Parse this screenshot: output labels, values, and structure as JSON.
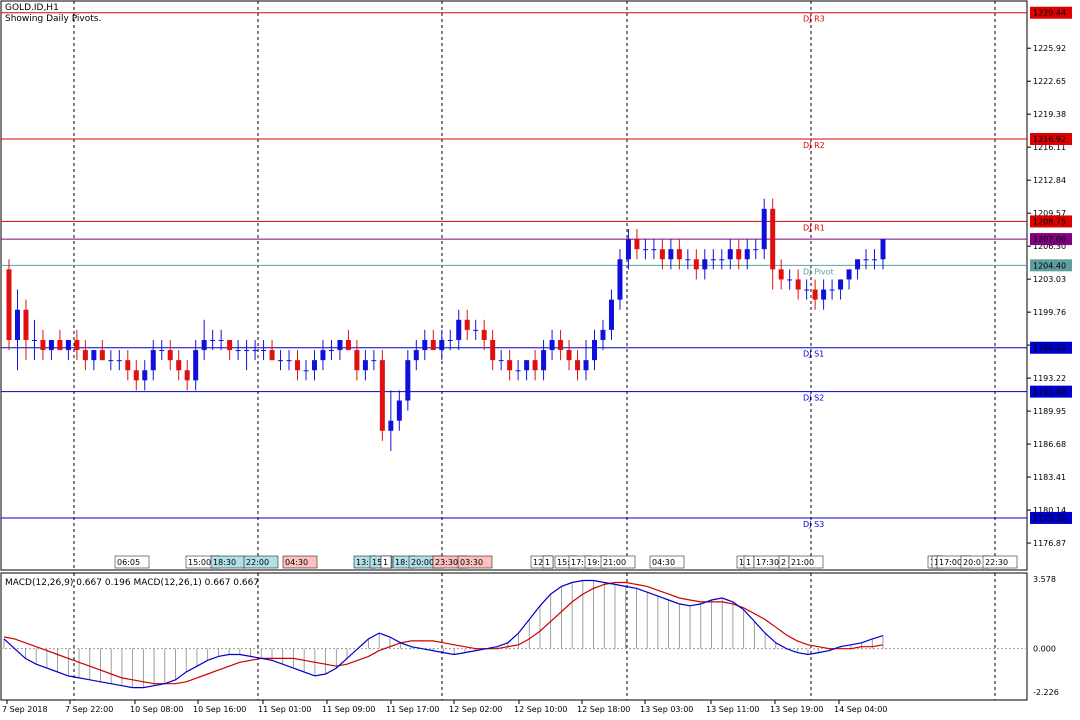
{
  "header": {
    "symbol": "GOLD.ID,H1",
    "subtitle": "Showing Daily Pivots."
  },
  "macd_label": "MACD(12,26,9) 0.667 0.196 MACD(12,26,1) 0.667 0.667",
  "colors": {
    "bull": "#1010dd",
    "bear": "#e01010",
    "resistance": "#dd0000",
    "support": "#0000cc",
    "pivot": "#5f9ea0",
    "price": "#800080",
    "macd_main": "#0000cc",
    "macd_signal": "#cc0000"
  },
  "chart_data": [
    {
      "type": "candlestick",
      "title": "GOLD.ID,H1",
      "ylim": [
        1174.2,
        1230.6
      ],
      "y_ticks": [
        "1225.92",
        "1222.65",
        "1219.38",
        "1216.11",
        "1212.84",
        "1209.57",
        "1206.30",
        "1203.03",
        "1199.76",
        "1196.49",
        "1193.22",
        "1189.95",
        "1186.68",
        "1183.41",
        "1180.14",
        "1176.87"
      ],
      "price_tags": [
        {
          "label": "1229.44",
          "value": 1229.44,
          "kind": "resistance"
        },
        {
          "label": "1216.92",
          "value": 1216.92,
          "kind": "resistance"
        },
        {
          "label": "1208.75",
          "value": 1208.75,
          "kind": "resistance"
        },
        {
          "label": "1207.00",
          "value": 1207.0,
          "kind": "price"
        },
        {
          "label": "1204.40",
          "value": 1204.4,
          "kind": "pivot"
        },
        {
          "label": "1196.23",
          "value": 1196.23,
          "kind": "support"
        },
        {
          "label": "1191.88",
          "value": 1191.88,
          "kind": "support"
        },
        {
          "label": "1179.36",
          "value": 1179.36,
          "kind": "support"
        }
      ],
      "pivot_levels": [
        {
          "name": "DJ R3",
          "value": 1229.44,
          "kind": "resistance"
        },
        {
          "name": "DJ R2",
          "value": 1216.92,
          "kind": "resistance"
        },
        {
          "name": "DJ R1",
          "value": 1208.75,
          "kind": "resistance"
        },
        {
          "name": "DJ Pivot",
          "value": 1204.4,
          "kind": "pivot"
        },
        {
          "name": "DJ S1",
          "value": 1196.23,
          "kind": "support"
        },
        {
          "name": "DJ S2",
          "value": 1191.88,
          "kind": "support"
        },
        {
          "name": "DJ S3",
          "value": 1179.36,
          "kind": "support"
        }
      ],
      "session_labels": [
        {
          "text": "06:05",
          "bg": "#ffffff"
        },
        {
          "text": "15:00",
          "bg": "#ffffff"
        },
        {
          "text": "18:30",
          "bg": "#b0e0e6"
        },
        {
          "text": "22:00",
          "bg": "#b0e0e6"
        },
        {
          "text": "04:30",
          "bg": "#ffc0c0"
        },
        {
          "text": "13:",
          "bg": "#b0e0e6"
        },
        {
          "text": "15:",
          "bg": "#b0e0e6"
        },
        {
          "text": "1",
          "bg": "#ffffff"
        },
        {
          "text": "18:",
          "bg": "#b0e0e6"
        },
        {
          "text": "20:00",
          "bg": "#b0e0e6"
        },
        {
          "text": "23:30",
          "bg": "#ffc0c0"
        },
        {
          "text": "03:30",
          "bg": "#ffc0c0"
        },
        {
          "text": "12:",
          "bg": "#ffffff"
        },
        {
          "text": "1",
          "bg": "#ffffff"
        },
        {
          "text": "15:",
          "bg": "#ffffff"
        },
        {
          "text": "17:",
          "bg": "#ffffff"
        },
        {
          "text": "19:",
          "bg": "#ffffff"
        },
        {
          "text": "21:00",
          "bg": "#ffffff"
        },
        {
          "text": "04:30",
          "bg": "#ffffff"
        },
        {
          "text": "1",
          "bg": "#ffffff"
        },
        {
          "text": "1",
          "bg": "#ffffff"
        },
        {
          "text": "17:30",
          "bg": "#ffffff"
        },
        {
          "text": "2",
          "bg": "#ffffff"
        },
        {
          "text": "21:00",
          "bg": "#ffffff"
        },
        {
          "text": "1",
          "bg": "#ffffff"
        },
        {
          "text": "1",
          "bg": "#ffffff"
        },
        {
          "text": "17:00",
          "bg": "#ffffff"
        },
        {
          "text": "20:0",
          "bg": "#ffffff"
        },
        {
          "text": "22:30",
          "bg": "#ffffff"
        }
      ],
      "x_labels": [
        "7 Sep 2018",
        "7 Sep 22:00",
        "10 Sep 08:00",
        "10 Sep 16:00",
        "11 Sep 01:00",
        "11 Sep 09:00",
        "11 Sep 17:00",
        "12 Sep 02:00",
        "12 Sep 10:00",
        "12 Sep 18:00",
        "13 Sep 03:00",
        "13 Sep 11:00",
        "13 Sep 19:00",
        "14 Sep 04:00"
      ],
      "candles": [
        [
          1204,
          1205,
          1196,
          1197
        ],
        [
          1197,
          1202,
          1194,
          1200
        ],
        [
          1200,
          1201,
          1195,
          1197
        ],
        [
          1197,
          1199,
          1195,
          1197
        ],
        [
          1197,
          1198,
          1195,
          1196
        ],
        [
          1196,
          1197,
          1195,
          1197
        ],
        [
          1197,
          1198,
          1196,
          1196
        ],
        [
          1196,
          1197,
          1195,
          1197
        ],
        [
          1197,
          1198,
          1195,
          1196
        ],
        [
          1196,
          1197,
          1194,
          1195
        ],
        [
          1195,
          1196,
          1194,
          1196
        ],
        [
          1196,
          1197,
          1195,
          1195
        ],
        [
          1195,
          1196,
          1194,
          1195
        ],
        [
          1195,
          1196,
          1194,
          1195
        ],
        [
          1195,
          1196,
          1193,
          1194
        ],
        [
          1194,
          1195,
          1192,
          1193
        ],
        [
          1193,
          1195,
          1192,
          1194
        ],
        [
          1194,
          1197,
          1193,
          1196
        ],
        [
          1196,
          1197,
          1195,
          1196
        ],
        [
          1196,
          1197,
          1194,
          1195
        ],
        [
          1195,
          1196,
          1193,
          1194
        ],
        [
          1194,
          1195,
          1192,
          1193
        ],
        [
          1193,
          1197,
          1192,
          1196
        ],
        [
          1196,
          1199,
          1195,
          1197
        ],
        [
          1197,
          1198,
          1196,
          1197
        ],
        [
          1197,
          1198,
          1196,
          1197
        ],
        [
          1197,
          1197,
          1195,
          1196
        ],
        [
          1196,
          1197,
          1195,
          1196
        ],
        [
          1196,
          1197,
          1194,
          1196
        ],
        [
          1196,
          1197,
          1195,
          1196
        ],
        [
          1196,
          1197,
          1195,
          1196
        ],
        [
          1196,
          1197,
          1195,
          1195
        ],
        [
          1195,
          1196,
          1194,
          1195
        ],
        [
          1195,
          1196,
          1194,
          1195
        ],
        [
          1195,
          1196,
          1193,
          1194
        ],
        [
          1194,
          1195,
          1193,
          1194
        ],
        [
          1194,
          1196,
          1193,
          1195
        ],
        [
          1195,
          1197,
          1194,
          1196
        ],
        [
          1196,
          1197,
          1195,
          1196
        ],
        [
          1196,
          1197,
          1195,
          1197
        ],
        [
          1197,
          1198,
          1196,
          1196
        ],
        [
          1196,
          1197,
          1193,
          1194
        ],
        [
          1194,
          1196,
          1193,
          1195
        ],
        [
          1195,
          1196,
          1194,
          1195
        ],
        [
          1195,
          1196,
          1187,
          1188
        ],
        [
          1188,
          1192,
          1186,
          1189
        ],
        [
          1189,
          1192,
          1188,
          1191
        ],
        [
          1191,
          1196,
          1190,
          1195
        ],
        [
          1195,
          1197,
          1194,
          1196
        ],
        [
          1196,
          1198,
          1195,
          1197
        ],
        [
          1197,
          1198,
          1196,
          1196
        ],
        [
          1196,
          1198,
          1195,
          1197
        ],
        [
          1197,
          1198,
          1196,
          1197
        ],
        [
          1197,
          1200,
          1196,
          1199
        ],
        [
          1199,
          1200,
          1197,
          1198
        ],
        [
          1198,
          1199,
          1197,
          1198
        ],
        [
          1198,
          1199,
          1196,
          1197
        ],
        [
          1197,
          1198,
          1194,
          1195
        ],
        [
          1195,
          1196,
          1194,
          1195
        ],
        [
          1195,
          1196,
          1193,
          1194
        ],
        [
          1194,
          1195,
          1193,
          1194
        ],
        [
          1194,
          1195,
          1193,
          1195
        ],
        [
          1195,
          1196,
          1193,
          1194
        ],
        [
          1194,
          1197,
          1193,
          1196
        ],
        [
          1196,
          1198,
          1195,
          1197
        ],
        [
          1197,
          1198,
          1195,
          1196
        ],
        [
          1196,
          1197,
          1194,
          1195
        ],
        [
          1195,
          1196,
          1193,
          1194
        ],
        [
          1194,
          1197,
          1193,
          1195
        ],
        [
          1195,
          1198,
          1194,
          1197
        ],
        [
          1197,
          1199,
          1196,
          1198
        ],
        [
          1198,
          1202,
          1197,
          1201
        ],
        [
          1201,
          1206,
          1200,
          1205
        ],
        [
          1205,
          1208,
          1204,
          1207
        ],
        [
          1207,
          1208,
          1205,
          1206
        ],
        [
          1206,
          1207,
          1205,
          1206
        ],
        [
          1206,
          1207,
          1205,
          1206
        ],
        [
          1206,
          1207,
          1204,
          1205
        ],
        [
          1205,
          1207,
          1204,
          1206
        ],
        [
          1206,
          1207,
          1204,
          1205
        ],
        [
          1205,
          1206,
          1204,
          1205
        ],
        [
          1205,
          1206,
          1203,
          1204
        ],
        [
          1204,
          1206,
          1203,
          1205
        ],
        [
          1205,
          1206,
          1204,
          1205
        ],
        [
          1205,
          1206,
          1204,
          1205
        ],
        [
          1205,
          1207,
          1204,
          1206
        ],
        [
          1206,
          1207,
          1204,
          1205
        ],
        [
          1205,
          1207,
          1204,
          1206
        ],
        [
          1206,
          1207,
          1205,
          1206
        ],
        [
          1206,
          1211,
          1205,
          1210
        ],
        [
          1210,
          1211,
          1202,
          1204
        ],
        [
          1204,
          1205,
          1202,
          1203
        ],
        [
          1203,
          1204,
          1202,
          1203
        ],
        [
          1203,
          1204,
          1201,
          1202
        ],
        [
          1202,
          1203,
          1201,
          1202
        ],
        [
          1202,
          1203,
          1200,
          1201
        ],
        [
          1201,
          1203,
          1200,
          1202
        ],
        [
          1202,
          1203,
          1201,
          1202
        ],
        [
          1202,
          1203,
          1201,
          1203
        ],
        [
          1203,
          1204,
          1202,
          1204
        ],
        [
          1204,
          1205,
          1203,
          1205
        ],
        [
          1205,
          1206,
          1204,
          1205
        ],
        [
          1205,
          1206,
          1204,
          1205
        ],
        [
          1205,
          1207,
          1204,
          1207
        ]
      ]
    },
    {
      "type": "line",
      "title": "MACD(12,26,9) 0.667 0.196 MACD(12,26,1) 0.667 0.667",
      "ylim": [
        -2.226,
        3.578
      ],
      "y_ticks": [
        "3.578",
        "0.000",
        "-2.226"
      ],
      "series": [
        {
          "name": "MACD main",
          "values": [
            0.5,
            0.0,
            -0.5,
            -0.8,
            -1.0,
            -1.2,
            -1.4,
            -1.5,
            -1.6,
            -1.7,
            -1.8,
            -1.9,
            -2.0,
            -2.0,
            -1.9,
            -1.8,
            -1.6,
            -1.2,
            -0.9,
            -0.6,
            -0.4,
            -0.3,
            -0.3,
            -0.4,
            -0.5,
            -0.6,
            -0.8,
            -1.0,
            -1.2,
            -1.4,
            -1.3,
            -1.0,
            -0.5,
            0.0,
            0.5,
            0.8,
            0.6,
            0.3,
            0.1,
            0.0,
            -0.1,
            -0.2,
            -0.3,
            -0.2,
            -0.1,
            0.0,
            0.1,
            0.3,
            0.8,
            1.5,
            2.2,
            2.8,
            3.2,
            3.4,
            3.5,
            3.5,
            3.4,
            3.3,
            3.2,
            3.1,
            2.9,
            2.7,
            2.5,
            2.3,
            2.2,
            2.3,
            2.5,
            2.6,
            2.4,
            2.0,
            1.4,
            0.8,
            0.3,
            0.0,
            -0.2,
            -0.3,
            -0.2,
            -0.1,
            0.1,
            0.2,
            0.3,
            0.5,
            0.67
          ]
        },
        {
          "name": "Signal",
          "values": [
            0.6,
            0.5,
            0.3,
            0.1,
            -0.1,
            -0.3,
            -0.5,
            -0.7,
            -0.9,
            -1.1,
            -1.3,
            -1.5,
            -1.6,
            -1.7,
            -1.8,
            -1.8,
            -1.8,
            -1.7,
            -1.5,
            -1.3,
            -1.1,
            -0.9,
            -0.7,
            -0.6,
            -0.5,
            -0.5,
            -0.5,
            -0.5,
            -0.6,
            -0.7,
            -0.8,
            -0.9,
            -0.8,
            -0.6,
            -0.4,
            -0.1,
            0.1,
            0.3,
            0.4,
            0.4,
            0.4,
            0.3,
            0.2,
            0.1,
            0.0,
            0.0,
            0.0,
            0.1,
            0.2,
            0.5,
            0.9,
            1.4,
            1.9,
            2.4,
            2.8,
            3.1,
            3.3,
            3.4,
            3.4,
            3.3,
            3.2,
            3.0,
            2.8,
            2.6,
            2.5,
            2.4,
            2.4,
            2.4,
            2.3,
            2.1,
            1.8,
            1.5,
            1.1,
            0.7,
            0.4,
            0.2,
            0.1,
            0.0,
            0.0,
            0.0,
            0.1,
            0.1,
            0.2
          ]
        }
      ]
    }
  ]
}
